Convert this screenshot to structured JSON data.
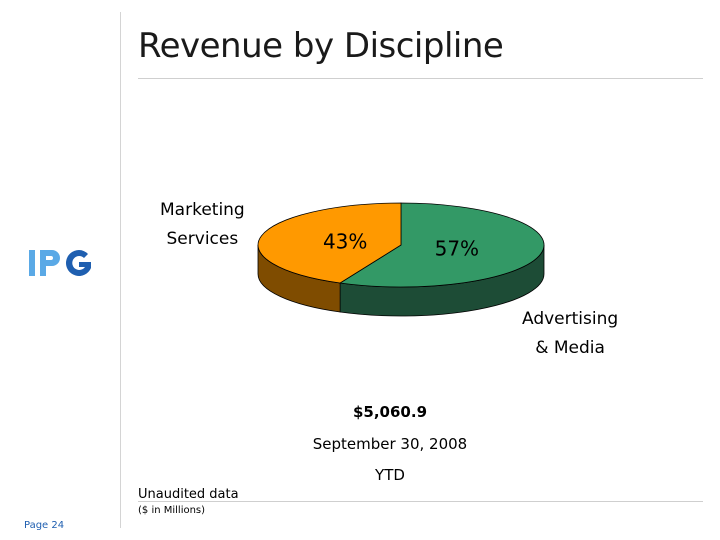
{
  "header": {
    "title": "Revenue by Discipline"
  },
  "brand": {
    "logo_text": "IPG",
    "colors": {
      "light_blue": "#5aa9e6",
      "dark_blue": "#1f5fb0"
    }
  },
  "footer": {
    "page": "Page 24"
  },
  "chart_data": {
    "type": "pie",
    "three_d": true,
    "slices": [
      {
        "label_line1": "Advertising",
        "label_line2": "& Media",
        "percent_label": "57%",
        "value": 57,
        "color": "#339966",
        "side_color": "#1d4c36"
      },
      {
        "label_line1": "Marketing",
        "label_line2": "Services",
        "percent_label": "43%",
        "value": 43,
        "color": "#ff9900",
        "side_color": "#7f4c00"
      }
    ],
    "total": "$5,060.9",
    "period": "September 30, 2008",
    "period_type": "YTD"
  },
  "notes": {
    "unaudited": "Unaudited data",
    "units": "($ in Millions)"
  }
}
